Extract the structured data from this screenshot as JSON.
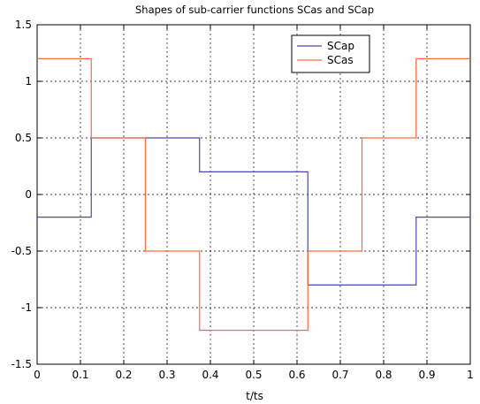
{
  "chart_data": {
    "type": "line",
    "title": "Shapes of sub-carrier functions SCas and SCap",
    "xlabel": "t/ts",
    "ylabel": "",
    "xlim": [
      0,
      1
    ],
    "ylim": [
      -1.5,
      1.5
    ],
    "xticks": [
      0,
      0.1,
      0.2,
      0.3,
      0.4,
      0.5,
      0.6,
      0.7,
      0.8,
      0.9,
      1
    ],
    "xtick_labels": [
      "0",
      "0.1",
      "0.2",
      "0.3",
      "0.4",
      "0.5",
      "0.6",
      "0.7",
      "0.8",
      "0.9",
      "1"
    ],
    "yticks": [
      1.5,
      1,
      0.5,
      0,
      -0.5,
      -1,
      -1.5
    ],
    "ytick_labels": [
      "1.5",
      "1",
      "0.5",
      "0",
      "-0.5",
      "-1",
      "-1.5"
    ],
    "grid": true,
    "legend_position": "top-right",
    "series": [
      {
        "name": "SCap",
        "color": "#4b4ba6",
        "x": [
          0,
          0.125,
          0.125,
          0.375,
          0.375,
          0.625,
          0.625,
          0.875,
          0.875,
          1
        ],
        "y": [
          -0.2,
          -0.2,
          0.5,
          0.5,
          0.2,
          0.2,
          -0.8,
          -0.8,
          -0.2,
          -0.2
        ]
      },
      {
        "name": "SCas",
        "color": "#ff6a3a",
        "x": [
          0,
          0.125,
          0.125,
          0.25,
          0.25,
          0.375,
          0.375,
          0.625,
          0.625,
          0.75,
          0.75,
          0.875,
          0.875,
          1
        ],
        "y": [
          1.2,
          1.2,
          0.5,
          0.5,
          -0.5,
          -0.5,
          -1.2,
          -1.2,
          -0.5,
          -0.5,
          0.5,
          0.5,
          1.2,
          1.2
        ]
      }
    ]
  }
}
